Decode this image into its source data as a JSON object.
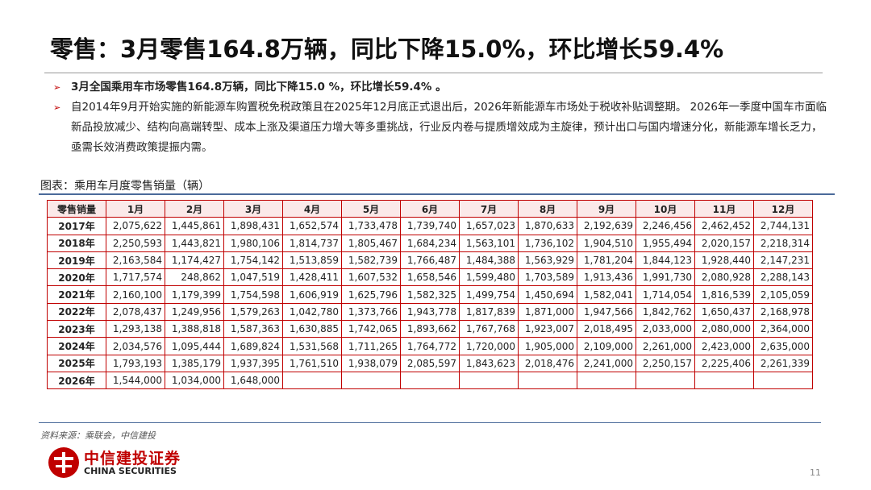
{
  "header": {
    "title": "零售：3月零售164.8万辆，同比下降15.0%，环比增长59.4%"
  },
  "bullets": [
    "3月全国乘用车市场零售164.8万辆，同比下降15.0 %，环比增长59.4% 。",
    "自2014年9月开始实施的新能源车购置税免税政策且在2025年12月底正式退出后，2026年新能源车市场处于税收补贴调整期。 2026年一季度中国车市面临新品投放减少、结构向高端转型、成本上涨及渠道压力增大等多重挑战，行业反内卷与提质增效成为主旋律，预计出口与国内增速分化，新能源车增长乏力，亟需长效消费政策提振内需。"
  ],
  "table": {
    "caption": "图表：乘用车月度零售销量（辆）",
    "header": [
      "零售销量",
      "1月",
      "2月",
      "3月",
      "4月",
      "5月",
      "6月",
      "7月",
      "8月",
      "9月",
      "10月",
      "11月",
      "12月"
    ],
    "rows": [
      [
        "2017年",
        "2,075,622",
        "1,445,861",
        "1,898,431",
        "1,652,574",
        "1,733,478",
        "1,739,740",
        "1,657,023",
        "1,870,633",
        "2,192,639",
        "2,246,456",
        "2,462,452",
        "2,744,131"
      ],
      [
        "2018年",
        "2,250,593",
        "1,443,821",
        "1,980,106",
        "1,814,737",
        "1,805,467",
        "1,684,234",
        "1,563,101",
        "1,736,102",
        "1,904,510",
        "1,955,494",
        "2,020,157",
        "2,218,314"
      ],
      [
        "2019年",
        "2,163,584",
        "1,174,427",
        "1,754,142",
        "1,513,859",
        "1,582,739",
        "1,766,487",
        "1,484,388",
        "1,563,929",
        "1,781,204",
        "1,844,123",
        "1,928,440",
        "2,147,231"
      ],
      [
        "2020年",
        "1,717,574",
        "248,862",
        "1,047,519",
        "1,428,411",
        "1,607,532",
        "1,658,546",
        "1,599,480",
        "1,703,589",
        "1,913,436",
        "1,991,730",
        "2,080,928",
        "2,288,143"
      ],
      [
        "2021年",
        "2,160,100",
        "1,179,399",
        "1,754,598",
        "1,606,919",
        "1,625,796",
        "1,582,325",
        "1,499,754",
        "1,450,694",
        "1,582,041",
        "1,714,054",
        "1,816,539",
        "2,105,059"
      ],
      [
        "2022年",
        "2,078,437",
        "1,249,956",
        "1,579,263",
        "1,042,780",
        "1,373,766",
        "1,943,778",
        "1,817,839",
        "1,871,000",
        "1,947,566",
        "1,842,762",
        "1,650,437",
        "2,168,978"
      ],
      [
        "2023年",
        "1,293,138",
        "1,388,818",
        "1,587,363",
        "1,630,885",
        "1,742,065",
        "1,893,662",
        "1,767,768",
        "1,923,007",
        "2,018,495",
        "2,033,000",
        "2,080,000",
        "2,364,000"
      ],
      [
        "2024年",
        "2,034,576",
        "1,095,444",
        "1,689,824",
        "1,531,568",
        "1,711,265",
        "1,764,772",
        "1,720,000",
        "1,905,000",
        "2,109,000",
        "2,261,000",
        "2,423,000",
        "2,635,000"
      ],
      [
        "2025年",
        "1,793,193",
        "1,385,179",
        "1,937,395",
        "1,761,510",
        "1,938,079",
        "2,085,597",
        "1,843,623",
        "2,018,476",
        "2,241,000",
        "2,250,157",
        "2,225,406",
        "2,261,339"
      ],
      [
        "2026年",
        "1,544,000",
        "1,034,000",
        "1,648,000"
      ]
    ]
  },
  "source": "资料来源：乘联会，中信建投",
  "logo": {
    "cn": "中信建投证券",
    "en": "CHINA SECURITIES"
  },
  "page_number": "11"
}
